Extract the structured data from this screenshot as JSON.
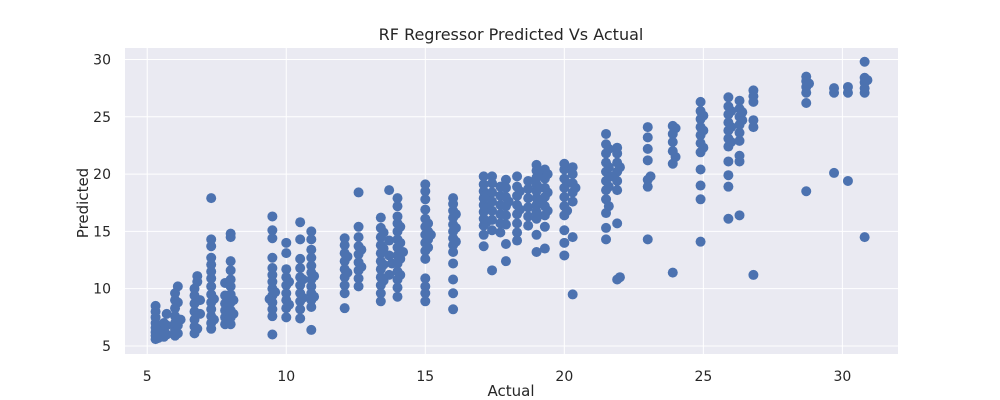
{
  "chart_data": {
    "type": "scatter",
    "title": "RF Regressor Predicted Vs Actual",
    "xlabel": "Actual",
    "ylabel": "Predicted",
    "xlim": [
      4.2,
      32.0
    ],
    "ylim": [
      4.3,
      31.0
    ],
    "xticks": [
      5,
      10,
      15,
      20,
      25,
      30
    ],
    "yticks": [
      5,
      10,
      15,
      20,
      25,
      30
    ],
    "grid": true,
    "point_color": "#4c72b0",
    "background_color": "#eaeaf2",
    "grid_color": "#ffffff",
    "points": [
      [
        5.3,
        5.6
      ],
      [
        5.3,
        5.9
      ],
      [
        5.3,
        6.2
      ],
      [
        5.3,
        6.6
      ],
      [
        5.3,
        7.0
      ],
      [
        5.3,
        7.5
      ],
      [
        5.3,
        8.0
      ],
      [
        5.3,
        8.5
      ],
      [
        5.4,
        5.7
      ],
      [
        5.4,
        6.4
      ],
      [
        5.6,
        5.8
      ],
      [
        5.6,
        6.3
      ],
      [
        5.6,
        7.0
      ],
      [
        5.7,
        6.0
      ],
      [
        5.7,
        6.8
      ],
      [
        5.7,
        7.8
      ],
      [
        6.0,
        5.9
      ],
      [
        6.0,
        6.4
      ],
      [
        6.0,
        7.0
      ],
      [
        6.0,
        7.6
      ],
      [
        6.0,
        8.3
      ],
      [
        6.0,
        9.0
      ],
      [
        6.0,
        9.6
      ],
      [
        6.1,
        10.2
      ],
      [
        6.1,
        6.1
      ],
      [
        6.1,
        6.8
      ],
      [
        6.1,
        8.8
      ],
      [
        6.2,
        7.3
      ],
      [
        6.7,
        6.1
      ],
      [
        6.7,
        6.7
      ],
      [
        6.7,
        7.3
      ],
      [
        6.7,
        8.0
      ],
      [
        6.7,
        8.7
      ],
      [
        6.7,
        9.4
      ],
      [
        6.7,
        10.0
      ],
      [
        6.8,
        10.6
      ],
      [
        6.8,
        11.1
      ],
      [
        6.8,
        6.5
      ],
      [
        6.9,
        7.8
      ],
      [
        6.9,
        9.0
      ],
      [
        7.3,
        6.5
      ],
      [
        7.3,
        7.0
      ],
      [
        7.3,
        7.6
      ],
      [
        7.3,
        8.2
      ],
      [
        7.3,
        8.8
      ],
      [
        7.3,
        9.5
      ],
      [
        7.3,
        10.2
      ],
      [
        7.3,
        10.9
      ],
      [
        7.3,
        11.5
      ],
      [
        7.3,
        12.1
      ],
      [
        7.3,
        12.7
      ],
      [
        7.3,
        13.7
      ],
      [
        7.3,
        14.3
      ],
      [
        7.3,
        17.9
      ],
      [
        7.4,
        7.3
      ],
      [
        7.4,
        9.1
      ],
      [
        7.8,
        6.9
      ],
      [
        7.8,
        7.5
      ],
      [
        7.8,
        8.1
      ],
      [
        7.8,
        8.7
      ],
      [
        7.8,
        9.4
      ],
      [
        7.8,
        10.5
      ],
      [
        7.9,
        7.2
      ],
      [
        7.9,
        8.4
      ],
      [
        8.0,
        6.9
      ],
      [
        8.0,
        7.5
      ],
      [
        8.0,
        8.1
      ],
      [
        8.0,
        8.8
      ],
      [
        8.0,
        9.5
      ],
      [
        8.0,
        10.2
      ],
      [
        8.0,
        10.8
      ],
      [
        8.0,
        11.6
      ],
      [
        8.0,
        12.4
      ],
      [
        8.0,
        14.5
      ],
      [
        8.0,
        14.8
      ],
      [
        8.1,
        7.8
      ],
      [
        8.1,
        9.0
      ],
      [
        9.5,
        6.0
      ],
      [
        9.5,
        7.6
      ],
      [
        9.5,
        8.2
      ],
      [
        9.5,
        8.8
      ],
      [
        9.5,
        9.4
      ],
      [
        9.5,
        10.0
      ],
      [
        9.5,
        10.6
      ],
      [
        9.5,
        11.2
      ],
      [
        9.5,
        11.8
      ],
      [
        9.5,
        12.7
      ],
      [
        9.5,
        14.4
      ],
      [
        9.5,
        15.1
      ],
      [
        9.5,
        16.3
      ],
      [
        9.4,
        9.1
      ],
      [
        9.6,
        9.7
      ],
      [
        10.0,
        7.5
      ],
      [
        10.0,
        8.3
      ],
      [
        10.0,
        9.0
      ],
      [
        10.0,
        9.6
      ],
      [
        10.0,
        10.3
      ],
      [
        10.0,
        11.0
      ],
      [
        10.0,
        11.7
      ],
      [
        10.0,
        13.1
      ],
      [
        10.0,
        14.0
      ],
      [
        10.1,
        8.6
      ],
      [
        10.1,
        10.6
      ],
      [
        10.5,
        7.4
      ],
      [
        10.5,
        8.2
      ],
      [
        10.5,
        8.9
      ],
      [
        10.5,
        9.6
      ],
      [
        10.5,
        10.3
      ],
      [
        10.5,
        11.0
      ],
      [
        10.5,
        11.8
      ],
      [
        10.5,
        12.6
      ],
      [
        10.5,
        14.3
      ],
      [
        10.5,
        15.8
      ],
      [
        10.6,
        9.2
      ],
      [
        10.6,
        10.8
      ],
      [
        10.9,
        6.4
      ],
      [
        10.9,
        8.4
      ],
      [
        10.9,
        9.0
      ],
      [
        10.9,
        9.6
      ],
      [
        10.9,
        10.2
      ],
      [
        10.9,
        10.8
      ],
      [
        10.9,
        11.4
      ],
      [
        10.9,
        12.0
      ],
      [
        10.9,
        12.7
      ],
      [
        10.9,
        13.4
      ],
      [
        10.9,
        14.3
      ],
      [
        10.9,
        15.0
      ],
      [
        11.0,
        9.3
      ],
      [
        11.0,
        11.1
      ],
      [
        12.1,
        8.3
      ],
      [
        12.1,
        9.6
      ],
      [
        12.1,
        10.3
      ],
      [
        12.1,
        11.0
      ],
      [
        12.1,
        11.7
      ],
      [
        12.1,
        12.4
      ],
      [
        12.1,
        13.1
      ],
      [
        12.1,
        13.8
      ],
      [
        12.1,
        14.4
      ],
      [
        12.2,
        11.4
      ],
      [
        12.2,
        12.8
      ],
      [
        12.6,
        10.2
      ],
      [
        12.6,
        10.9
      ],
      [
        12.6,
        11.6
      ],
      [
        12.6,
        12.3
      ],
      [
        12.6,
        13.0
      ],
      [
        12.6,
        13.7
      ],
      [
        12.6,
        14.5
      ],
      [
        12.6,
        15.4
      ],
      [
        12.6,
        18.4
      ],
      [
        12.7,
        11.9
      ],
      [
        12.7,
        13.4
      ],
      [
        13.4,
        8.9
      ],
      [
        13.4,
        9.6
      ],
      [
        13.4,
        10.3
      ],
      [
        13.4,
        11.0
      ],
      [
        13.4,
        11.7
      ],
      [
        13.4,
        12.4
      ],
      [
        13.4,
        13.1
      ],
      [
        13.4,
        13.8
      ],
      [
        13.4,
        14.5
      ],
      [
        13.4,
        15.3
      ],
      [
        13.4,
        16.2
      ],
      [
        13.5,
        10.7
      ],
      [
        13.5,
        12.1
      ],
      [
        13.5,
        13.5
      ],
      [
        13.5,
        14.9
      ],
      [
        13.7,
        11.2
      ],
      [
        13.7,
        12.9
      ],
      [
        13.7,
        14.2
      ],
      [
        13.7,
        18.6
      ],
      [
        13.8,
        12.2
      ],
      [
        14.0,
        9.3
      ],
      [
        14.0,
        10.1
      ],
      [
        14.0,
        10.8
      ],
      [
        14.0,
        11.5
      ],
      [
        14.0,
        12.2
      ],
      [
        14.0,
        12.9
      ],
      [
        14.0,
        13.6
      ],
      [
        14.0,
        14.3
      ],
      [
        14.0,
        15.0
      ],
      [
        14.0,
        15.7
      ],
      [
        14.0,
        16.3
      ],
      [
        14.0,
        17.2
      ],
      [
        14.0,
        17.9
      ],
      [
        14.1,
        11.2
      ],
      [
        14.1,
        12.6
      ],
      [
        14.1,
        14.0
      ],
      [
        14.1,
        15.4
      ],
      [
        14.2,
        13.2
      ],
      [
        15.0,
        8.9
      ],
      [
        15.0,
        9.6
      ],
      [
        15.0,
        10.2
      ],
      [
        15.0,
        10.9
      ],
      [
        15.0,
        12.6
      ],
      [
        15.0,
        13.3
      ],
      [
        15.0,
        14.0
      ],
      [
        15.0,
        14.7
      ],
      [
        15.0,
        15.4
      ],
      [
        15.0,
        16.1
      ],
      [
        15.0,
        16.9
      ],
      [
        15.0,
        17.8
      ],
      [
        15.0,
        18.5
      ],
      [
        15.0,
        19.1
      ],
      [
        15.1,
        13.6
      ],
      [
        15.1,
        14.3
      ],
      [
        15.1,
        15.0
      ],
      [
        15.1,
        15.7
      ],
      [
        15.2,
        14.7
      ],
      [
        16.0,
        8.2
      ],
      [
        16.0,
        9.6
      ],
      [
        16.0,
        10.8
      ],
      [
        16.0,
        12.2
      ],
      [
        16.0,
        13.2
      ],
      [
        16.0,
        13.8
      ],
      [
        16.0,
        14.4
      ],
      [
        16.0,
        15.0
      ],
      [
        16.0,
        15.6
      ],
      [
        16.0,
        16.2
      ],
      [
        16.0,
        16.8
      ],
      [
        16.0,
        17.4
      ],
      [
        16.0,
        17.9
      ],
      [
        16.1,
        14.1
      ],
      [
        16.1,
        15.3
      ],
      [
        16.1,
        16.5
      ],
      [
        17.1,
        13.7
      ],
      [
        17.1,
        14.7
      ],
      [
        17.1,
        15.5
      ],
      [
        17.1,
        16.1
      ],
      [
        17.1,
        16.7
      ],
      [
        17.1,
        17.3
      ],
      [
        17.1,
        17.9
      ],
      [
        17.1,
        18.5
      ],
      [
        17.1,
        19.1
      ],
      [
        17.1,
        19.8
      ],
      [
        17.2,
        15.8
      ],
      [
        17.2,
        17.0
      ],
      [
        17.2,
        18.2
      ],
      [
        17.4,
        11.6
      ],
      [
        17.4,
        15.1
      ],
      [
        17.4,
        16.0
      ],
      [
        17.4,
        16.8
      ],
      [
        17.4,
        17.6
      ],
      [
        17.4,
        18.4
      ],
      [
        17.4,
        19.2
      ],
      [
        17.4,
        19.8
      ],
      [
        17.7,
        14.9
      ],
      [
        17.7,
        15.7
      ],
      [
        17.7,
        16.5
      ],
      [
        17.7,
        17.3
      ],
      [
        17.7,
        18.1
      ],
      [
        17.7,
        18.9
      ],
      [
        17.9,
        12.4
      ],
      [
        17.9,
        13.9
      ],
      [
        17.9,
        15.6
      ],
      [
        17.9,
        16.4
      ],
      [
        17.9,
        17.2
      ],
      [
        17.9,
        18.0
      ],
      [
        17.9,
        18.8
      ],
      [
        17.9,
        19.5
      ],
      [
        18.0,
        17.6
      ],
      [
        18.3,
        14.2
      ],
      [
        18.3,
        14.9
      ],
      [
        18.3,
        15.7
      ],
      [
        18.3,
        16.5
      ],
      [
        18.3,
        17.3
      ],
      [
        18.3,
        18.1
      ],
      [
        18.3,
        18.9
      ],
      [
        18.3,
        19.8
      ],
      [
        18.4,
        16.9
      ],
      [
        18.4,
        18.5
      ],
      [
        18.7,
        15.5
      ],
      [
        18.7,
        16.3
      ],
      [
        18.7,
        17.1
      ],
      [
        18.7,
        17.9
      ],
      [
        18.7,
        18.7
      ],
      [
        18.7,
        19.4
      ],
      [
        19.0,
        13.2
      ],
      [
        19.0,
        14.7
      ],
      [
        19.0,
        16.1
      ],
      [
        19.0,
        16.7
      ],
      [
        19.0,
        17.3
      ],
      [
        19.0,
        17.9
      ],
      [
        19.0,
        18.5
      ],
      [
        19.0,
        19.1
      ],
      [
        19.0,
        19.7
      ],
      [
        19.0,
        20.3
      ],
      [
        19.0,
        20.8
      ],
      [
        19.1,
        17.6
      ],
      [
        19.1,
        18.8
      ],
      [
        19.1,
        20.0
      ],
      [
        19.3,
        13.5
      ],
      [
        19.3,
        15.4
      ],
      [
        19.3,
        16.4
      ],
      [
        19.3,
        17.2
      ],
      [
        19.3,
        18.0
      ],
      [
        19.3,
        18.8
      ],
      [
        19.3,
        19.6
      ],
      [
        19.3,
        20.4
      ],
      [
        19.4,
        16.8
      ],
      [
        19.4,
        18.4
      ],
      [
        19.4,
        20.0
      ],
      [
        20.0,
        12.9
      ],
      [
        20.0,
        14.0
      ],
      [
        20.0,
        15.1
      ],
      [
        20.0,
        16.4
      ],
      [
        20.0,
        17.2
      ],
      [
        20.0,
        18.0
      ],
      [
        20.0,
        18.8
      ],
      [
        20.0,
        19.6
      ],
      [
        20.0,
        20.4
      ],
      [
        20.0,
        20.9
      ],
      [
        20.1,
        16.8
      ],
      [
        20.1,
        19.2
      ],
      [
        20.3,
        9.5
      ],
      [
        20.3,
        14.5
      ],
      [
        20.3,
        17.6
      ],
      [
        20.3,
        18.4
      ],
      [
        20.3,
        19.2
      ],
      [
        20.3,
        20.0
      ],
      [
        20.3,
        20.6
      ],
      [
        20.4,
        18.8
      ],
      [
        21.5,
        14.3
      ],
      [
        21.5,
        15.3
      ],
      [
        21.5,
        16.6
      ],
      [
        21.5,
        17.8
      ],
      [
        21.5,
        18.6
      ],
      [
        21.5,
        19.4
      ],
      [
        21.5,
        20.2
      ],
      [
        21.5,
        21.0
      ],
      [
        21.5,
        21.8
      ],
      [
        21.5,
        22.6
      ],
      [
        21.5,
        23.5
      ],
      [
        21.6,
        17.2
      ],
      [
        21.6,
        18.9
      ],
      [
        21.6,
        20.6
      ],
      [
        21.6,
        22.2
      ],
      [
        21.7,
        19.8
      ],
      [
        21.9,
        10.8
      ],
      [
        21.9,
        15.7
      ],
      [
        21.9,
        18.6
      ],
      [
        21.9,
        19.4
      ],
      [
        21.9,
        20.2
      ],
      [
        21.9,
        21.0
      ],
      [
        21.9,
        21.8
      ],
      [
        21.9,
        22.3
      ],
      [
        22.0,
        11.0
      ],
      [
        22.0,
        20.6
      ],
      [
        23.0,
        14.3
      ],
      [
        23.0,
        18.9
      ],
      [
        23.0,
        19.5
      ],
      [
        23.0,
        21.2
      ],
      [
        23.0,
        22.2
      ],
      [
        23.0,
        23.2
      ],
      [
        23.0,
        24.1
      ],
      [
        23.1,
        19.8
      ],
      [
        23.9,
        11.4
      ],
      [
        23.9,
        20.9
      ],
      [
        23.9,
        22.0
      ],
      [
        23.9,
        22.8
      ],
      [
        23.9,
        23.5
      ],
      [
        23.9,
        24.2
      ],
      [
        24.0,
        21.5
      ],
      [
        24.0,
        24.0
      ],
      [
        24.9,
        14.1
      ],
      [
        24.9,
        17.8
      ],
      [
        24.9,
        19.0
      ],
      [
        24.9,
        20.4
      ],
      [
        24.9,
        21.9
      ],
      [
        24.9,
        22.7
      ],
      [
        24.9,
        23.4
      ],
      [
        24.9,
        24.1
      ],
      [
        24.9,
        24.8
      ],
      [
        24.9,
        25.5
      ],
      [
        24.9,
        26.3
      ],
      [
        25.0,
        23.8
      ],
      [
        25.0,
        25.1
      ],
      [
        25.0,
        22.3
      ],
      [
        25.9,
        16.1
      ],
      [
        25.9,
        18.9
      ],
      [
        25.9,
        19.9
      ],
      [
        25.9,
        21.1
      ],
      [
        25.9,
        22.4
      ],
      [
        25.9,
        23.1
      ],
      [
        25.9,
        23.8
      ],
      [
        25.9,
        24.5
      ],
      [
        25.9,
        25.2
      ],
      [
        25.9,
        25.9
      ],
      [
        25.9,
        26.7
      ],
      [
        26.0,
        24.1
      ],
      [
        26.0,
        25.5
      ],
      [
        26.0,
        22.8
      ],
      [
        26.3,
        16.4
      ],
      [
        26.3,
        21.1
      ],
      [
        26.3,
        21.6
      ],
      [
        26.3,
        22.9
      ],
      [
        26.3,
        23.6
      ],
      [
        26.3,
        24.3
      ],
      [
        26.3,
        25.0
      ],
      [
        26.3,
        25.7
      ],
      [
        26.3,
        26.4
      ],
      [
        26.4,
        24.7
      ],
      [
        26.4,
        25.4
      ],
      [
        26.8,
        11.2
      ],
      [
        26.8,
        24.1
      ],
      [
        26.8,
        24.7
      ],
      [
        26.8,
        26.3
      ],
      [
        26.8,
        26.8
      ],
      [
        26.8,
        27.3
      ],
      [
        28.7,
        18.5
      ],
      [
        28.7,
        26.2
      ],
      [
        28.7,
        27.1
      ],
      [
        28.7,
        27.6
      ],
      [
        28.7,
        28.1
      ],
      [
        28.7,
        28.5
      ],
      [
        28.8,
        27.9
      ],
      [
        29.7,
        20.1
      ],
      [
        29.7,
        27.1
      ],
      [
        29.7,
        27.5
      ],
      [
        30.2,
        19.4
      ],
      [
        30.2,
        27.1
      ],
      [
        30.2,
        27.6
      ],
      [
        30.8,
        14.5
      ],
      [
        30.8,
        27.1
      ],
      [
        30.8,
        27.5
      ],
      [
        30.8,
        28.0
      ],
      [
        30.8,
        28.4
      ],
      [
        30.8,
        29.8
      ],
      [
        30.9,
        28.2
      ]
    ]
  }
}
